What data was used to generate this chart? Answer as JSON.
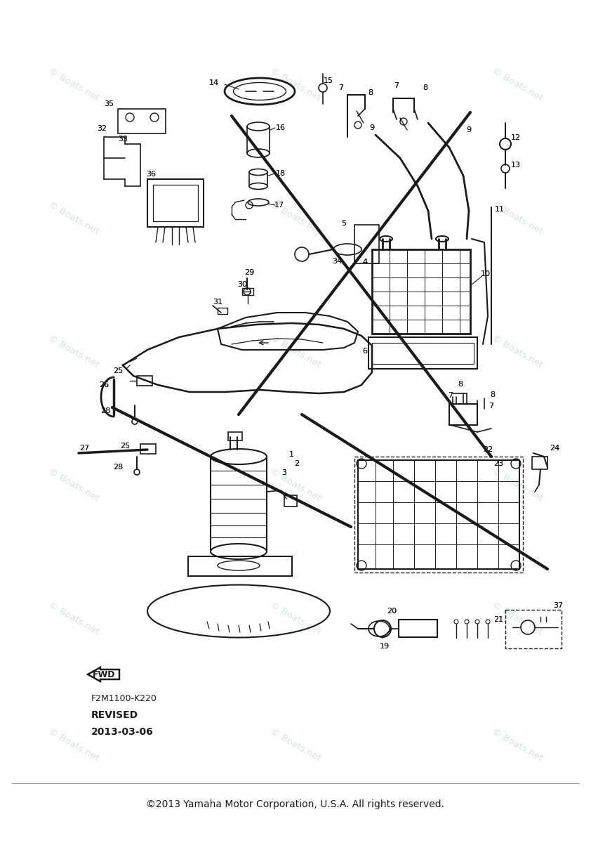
{
  "bg_color": "#ffffff",
  "line_color": "#1a1a1a",
  "watermark_color": "#c5ddd0",
  "watermark_text": "© Boats.net",
  "footer": "©2013 Yamaha Motor Corporation, U.S.A. All rights reserved.",
  "part_code": "F2M1100-K220",
  "revised": "REVISED",
  "revised_date": "2013-03-06",
  "fig_width": 8.42,
  "fig_height": 12.0,
  "dpi": 100
}
